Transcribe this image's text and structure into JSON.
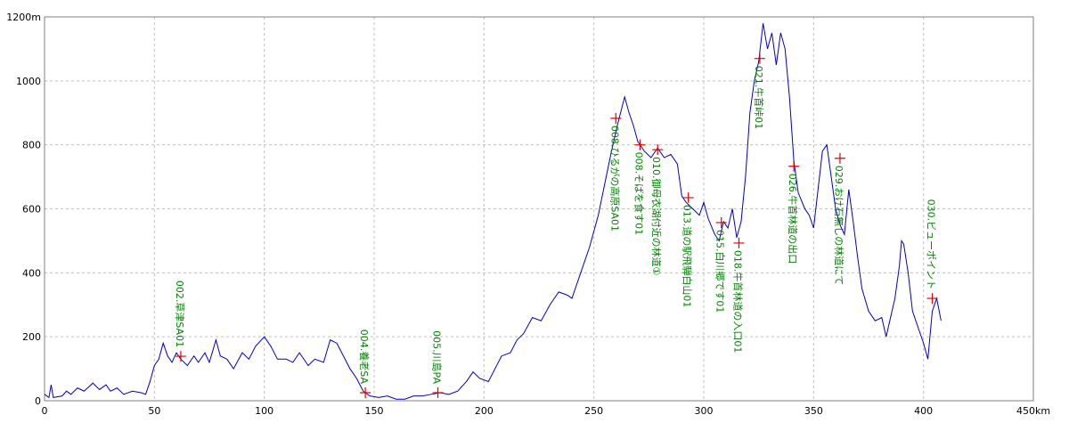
{
  "chart_data": {
    "type": "line",
    "xlim": [
      0,
      450
    ],
    "ylim": [
      0,
      1200
    ],
    "xticks": [
      0,
      50,
      100,
      150,
      200,
      250,
      300,
      350,
      400,
      {
        "value": 450,
        "label": "450km"
      }
    ],
    "yticks": [
      0,
      200,
      400,
      600,
      800,
      1000,
      {
        "value": 1200,
        "label": "1200m"
      }
    ],
    "grid": true,
    "x": [
      0,
      2,
      3,
      4,
      8,
      10,
      12,
      15,
      18,
      22,
      25,
      28,
      30,
      33,
      36,
      40,
      44,
      46,
      48,
      50,
      52,
      54,
      56,
      58,
      60,
      62,
      65,
      68,
      70,
      73,
      75,
      78,
      80,
      83,
      86,
      90,
      93,
      96,
      100,
      103,
      106,
      110,
      113,
      116,
      120,
      123,
      127,
      130,
      133,
      136,
      139,
      142,
      145,
      148,
      152,
      156,
      160,
      164,
      168,
      172,
      176,
      180,
      184,
      188,
      192,
      195,
      198,
      202,
      205,
      208,
      212,
      215,
      218,
      222,
      226,
      230,
      234,
      238,
      240,
      244,
      248,
      252,
      255,
      258,
      261,
      264,
      266,
      268,
      270,
      273,
      276,
      279,
      282,
      285,
      288,
      290,
      292,
      295,
      298,
      300,
      302,
      305,
      307,
      309,
      311,
      313,
      315,
      317,
      319,
      321,
      323,
      325,
      327,
      329,
      331,
      333,
      335,
      337,
      339,
      341,
      343,
      346,
      348,
      350,
      352,
      354,
      356,
      358,
      360,
      362,
      364,
      366,
      368,
      370,
      372,
      375,
      378,
      381,
      383,
      385,
      387,
      389,
      390,
      391,
      393,
      395,
      398,
      400,
      402,
      404,
      406,
      408
    ],
    "series": [
      {
        "color": "#0000c8",
        "values": [
          20,
          10,
          50,
          10,
          15,
          30,
          20,
          40,
          30,
          55,
          35,
          50,
          30,
          40,
          20,
          30,
          25,
          20,
          60,
          110,
          130,
          180,
          140,
          120,
          150,
          130,
          110,
          140,
          120,
          150,
          120,
          190,
          140,
          130,
          100,
          150,
          130,
          170,
          200,
          170,
          130,
          130,
          120,
          150,
          110,
          130,
          120,
          190,
          180,
          140,
          100,
          70,
          30,
          15,
          10,
          15,
          5,
          5,
          15,
          15,
          20,
          25,
          20,
          30,
          60,
          90,
          70,
          60,
          100,
          140,
          150,
          190,
          210,
          260,
          250,
          300,
          340,
          330,
          320,
          400,
          480,
          580,
          680,
          780,
          870,
          950,
          900,
          860,
          810,
          780,
          760,
          790,
          760,
          770,
          740,
          640,
          620,
          600,
          580,
          620,
          570,
          520,
          500,
          560,
          540,
          600,
          510,
          560,
          700,
          900,
          1000,
          1060,
          1180,
          1100,
          1150,
          1050,
          1150,
          1100,
          950,
          750,
          650,
          600,
          580,
          540,
          660,
          780,
          800,
          700,
          600,
          550,
          520,
          660,
          560,
          450,
          350,
          280,
          250,
          260,
          200,
          260,
          320,
          420,
          500,
          490,
          400,
          280,
          220,
          180,
          130,
          280,
          320,
          250
        ]
      }
    ],
    "marker_color": "#e00000",
    "label_color": "#008000",
    "points": [
      {
        "label": "002.草津SA01",
        "x": 62,
        "y": 139
      },
      {
        "label": "004.養老SA",
        "x": 146,
        "y": 25
      },
      {
        "label": "005.川島PA",
        "x": 179,
        "y": 25
      },
      {
        "label": "008.ひるがの高原SA01",
        "x": 260,
        "y": 883
      },
      {
        "label": "008.そばを食す01",
        "x": 271,
        "y": 800
      },
      {
        "label": "010.御母衣湖付近の林道①",
        "x": 279,
        "y": 785
      },
      {
        "label": "013.道の駅飛騨白山01",
        "x": 293,
        "y": 635
      },
      {
        "label": "015.白川郷です01",
        "x": 308,
        "y": 557
      },
      {
        "label": "018.牛首林道の入口01",
        "x": 316,
        "y": 493
      },
      {
        "label": "021.牛首峠01",
        "x": 325.5,
        "y": 1070
      },
      {
        "label": "026.牛首林道の出口",
        "x": 341,
        "y": 733
      },
      {
        "label": "029.おけ石無しの林道にて",
        "x": 362,
        "y": 758
      },
      {
        "label": "030.ビューポイント",
        "x": 404,
        "y": 320
      }
    ]
  }
}
